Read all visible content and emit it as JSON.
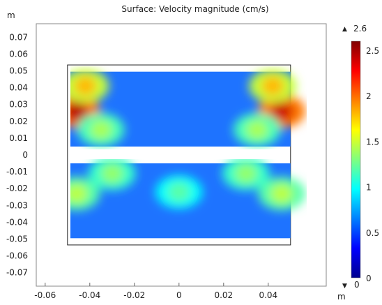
{
  "chart_data": {
    "type": "heatmap",
    "title": "Surface: Velocity magnitude (cm/s)",
    "xlabel": "m",
    "ylabel": "m",
    "xlim": [
      -0.064,
      0.066
    ],
    "ylim": [
      -0.078,
      0.078
    ],
    "x_ticks": [
      "-0.06",
      "-0.04",
      "-0.02",
      "0",
      "0.02",
      "0.04"
    ],
    "y_ticks": [
      "0.07",
      "0.06",
      "0.05",
      "0.04",
      "0.03",
      "0.02",
      "0.01",
      "0",
      "-0.01",
      "-0.02",
      "-0.03",
      "-0.04",
      "-0.05",
      "-0.06",
      "-0.07"
    ],
    "grid": false,
    "colormap": "jet",
    "domain_outline": {
      "x": [
        -0.05,
        0.05
      ],
      "y": [
        -0.0535,
        0.0535
      ]
    },
    "regions": [
      {
        "x": [
          -0.05,
          0.05
        ],
        "y": [
          0.005,
          0.0495
        ]
      },
      {
        "x": [
          -0.05,
          0.05
        ],
        "y": [
          -0.0495,
          -0.005
        ]
      }
    ],
    "hotspots": [
      {
        "x": -0.046,
        "y": 0.026,
        "value": 2.45
      },
      {
        "x": 0.046,
        "y": 0.026,
        "value": 2.4
      },
      {
        "x": -0.042,
        "y": 0.041,
        "value": 1.8
      },
      {
        "x": 0.042,
        "y": 0.041,
        "value": 1.8
      },
      {
        "x": -0.035,
        "y": 0.015,
        "value": 1.4
      },
      {
        "x": 0.035,
        "y": 0.015,
        "value": 1.4
      },
      {
        "x": -0.03,
        "y": -0.011,
        "value": 1.35
      },
      {
        "x": 0.03,
        "y": -0.011,
        "value": 1.35
      },
      {
        "x": -0.046,
        "y": -0.023,
        "value": 1.45
      },
      {
        "x": 0.046,
        "y": -0.023,
        "value": 1.45
      },
      {
        "x": 0.0,
        "y": -0.022,
        "value": 1.2
      }
    ],
    "colorbar": {
      "min": 0,
      "max": 2.6,
      "max_label": "2.6",
      "min_label": "0",
      "tick_values": [
        2.5,
        2,
        1.5,
        1,
        0.5,
        0
      ],
      "tick_labels": [
        "2.5",
        "2",
        "1.5",
        "1",
        "0.5",
        "0"
      ]
    }
  }
}
